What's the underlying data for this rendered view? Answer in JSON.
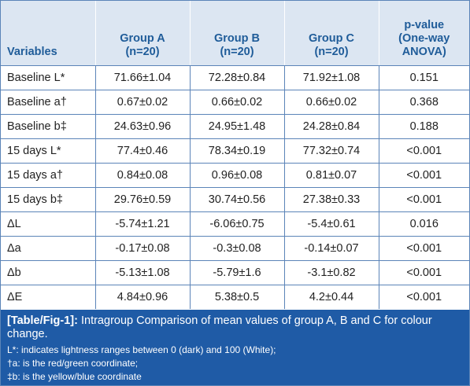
{
  "table": {
    "header": [
      "Variables",
      [
        "Group A",
        "(n=20)"
      ],
      [
        "Group B",
        "(n=20)"
      ],
      [
        "Group C",
        "(n=20)"
      ],
      [
        "p-value",
        "(One-way",
        "ANOVA)"
      ]
    ],
    "rows": [
      [
        "Baseline L*",
        "71.66±1.04",
        "72.28±0.84",
        "71.92±1.08",
        "0.151"
      ],
      [
        "Baseline a†",
        "0.67±0.02",
        "0.66±0.02",
        "0.66±0.02",
        "0.368"
      ],
      [
        "Baseline b‡",
        "24.63±0.96",
        "24.95±1.48",
        "24.28±0.84",
        "0.188"
      ],
      [
        "15 days L*",
        "77.4±0.46",
        "78.34±0.19",
        "77.32±0.74",
        "<0.001"
      ],
      [
        "15 days a†",
        "0.84±0.08",
        "0.96±0.08",
        "0.81±0.07",
        "<0.001"
      ],
      [
        "15 days b‡",
        "29.76±0.59",
        "30.74±0.56",
        "27.38±0.33",
        "<0.001"
      ],
      [
        "ΔL",
        "-5.74±1.21",
        "-6.06±0.75",
        "-5.4±0.61",
        "0.016"
      ],
      [
        "Δa",
        "-0.17±0.08",
        "-0.3±0.08",
        "-0.14±0.07",
        "<0.001"
      ],
      [
        "Δb",
        "-5.13±1.08",
        "-5.79±1.6",
        "-3.1±0.82",
        "<0.001"
      ],
      [
        "ΔE",
        "4.84±0.96",
        "5.38±0.5",
        "4.2±0.44",
        "<0.001"
      ]
    ]
  },
  "caption": {
    "label": "[Table/Fig-1]:",
    "text": "Intragroup Comparison of mean values of group A, B and C for colour change.",
    "notes": [
      "L*: indicates lightness ranges between 0 (dark) and 100 (White);",
      "†a: is the red/green coordinate;",
      "‡b: is the yellow/blue coordinate"
    ]
  }
}
